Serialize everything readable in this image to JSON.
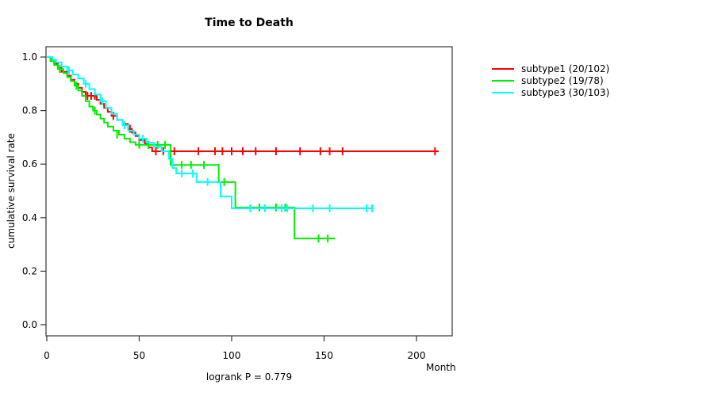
{
  "chart_data": {
    "type": "line",
    "subtype": "kaplan-meier-step",
    "title": "Time to Death",
    "xlabel": "Month",
    "ylabel": "cumulative survival rate",
    "annotation": "logrank P = 0.779",
    "xlim": [
      0,
      219
    ],
    "ylim": [
      0,
      1.04
    ],
    "xticks": [
      0,
      50,
      100,
      150,
      200
    ],
    "yticks": [
      0.0,
      0.2,
      0.4,
      0.6,
      0.8,
      1.0
    ],
    "grid": false,
    "legend_position": "right",
    "series": [
      {
        "name": "subtype1",
        "legend_label": "subtype1 (20/102)",
        "color": "#FF0000",
        "steps": [
          [
            0,
            1.0
          ],
          [
            2,
            0.99
          ],
          [
            4,
            0.975
          ],
          [
            6,
            0.96
          ],
          [
            8,
            0.945
          ],
          [
            11,
            0.93
          ],
          [
            13,
            0.915
          ],
          [
            15,
            0.9
          ],
          [
            17,
            0.885
          ],
          [
            19,
            0.87
          ],
          [
            21,
            0.855
          ],
          [
            27,
            0.84
          ],
          [
            29,
            0.825
          ],
          [
            31,
            0.81
          ],
          [
            33,
            0.795
          ],
          [
            35,
            0.78
          ],
          [
            38,
            0.765
          ],
          [
            41,
            0.75
          ],
          [
            44,
            0.732
          ],
          [
            46,
            0.718
          ],
          [
            48,
            0.705
          ],
          [
            50,
            0.69
          ],
          [
            53,
            0.676
          ],
          [
            55,
            0.662
          ],
          [
            57,
            0.648
          ],
          [
            212,
            0.648
          ]
        ],
        "censors": [
          [
            22,
            0.855
          ],
          [
            24,
            0.855
          ],
          [
            26,
            0.855
          ],
          [
            36,
            0.78
          ],
          [
            45,
            0.732
          ],
          [
            59,
            0.648
          ],
          [
            63,
            0.648
          ],
          [
            69,
            0.648
          ],
          [
            82,
            0.648
          ],
          [
            91,
            0.648
          ],
          [
            95,
            0.648
          ],
          [
            100,
            0.648
          ],
          [
            106,
            0.648
          ],
          [
            113,
            0.648
          ],
          [
            124,
            0.648
          ],
          [
            137,
            0.648
          ],
          [
            148,
            0.648
          ],
          [
            153,
            0.648
          ],
          [
            160,
            0.648
          ],
          [
            210,
            0.648
          ]
        ]
      },
      {
        "name": "subtype2",
        "legend_label": "subtype2 (19/78)",
        "color": "#00EE00",
        "steps": [
          [
            0,
            1.0
          ],
          [
            2,
            0.985
          ],
          [
            4,
            0.97
          ],
          [
            6,
            0.955
          ],
          [
            9,
            0.94
          ],
          [
            11,
            0.925
          ],
          [
            13,
            0.91
          ],
          [
            15,
            0.893
          ],
          [
            17,
            0.875
          ],
          [
            19,
            0.855
          ],
          [
            21,
            0.835
          ],
          [
            23,
            0.815
          ],
          [
            25,
            0.8
          ],
          [
            27,
            0.785
          ],
          [
            29,
            0.77
          ],
          [
            31,
            0.755
          ],
          [
            33,
            0.74
          ],
          [
            36,
            0.725
          ],
          [
            39,
            0.71
          ],
          [
            42,
            0.695
          ],
          [
            45,
            0.682
          ],
          [
            48,
            0.672
          ],
          [
            67,
            0.597
          ],
          [
            93,
            0.533
          ],
          [
            102,
            0.438
          ],
          [
            134,
            0.322
          ],
          [
            156,
            0.322
          ]
        ],
        "censors": [
          [
            7,
            0.955
          ],
          [
            16,
            0.893
          ],
          [
            26,
            0.8
          ],
          [
            38,
            0.71
          ],
          [
            50,
            0.672
          ],
          [
            55,
            0.672
          ],
          [
            60,
            0.672
          ],
          [
            64,
            0.672
          ],
          [
            73,
            0.597
          ],
          [
            78,
            0.597
          ],
          [
            85,
            0.597
          ],
          [
            96,
            0.533
          ],
          [
            115,
            0.438
          ],
          [
            124,
            0.438
          ],
          [
            129,
            0.438
          ],
          [
            147,
            0.322
          ],
          [
            152,
            0.322
          ]
        ]
      },
      {
        "name": "subtype3",
        "legend_label": "subtype3 (30/103)",
        "color": "#00FFFF",
        "steps": [
          [
            0,
            1.0
          ],
          [
            3,
            0.99
          ],
          [
            5,
            0.98
          ],
          [
            8,
            0.965
          ],
          [
            11,
            0.95
          ],
          [
            14,
            0.935
          ],
          [
            17,
            0.92
          ],
          [
            20,
            0.9
          ],
          [
            23,
            0.88
          ],
          [
            26,
            0.86
          ],
          [
            29,
            0.835
          ],
          [
            32,
            0.81
          ],
          [
            35,
            0.788
          ],
          [
            38,
            0.765
          ],
          [
            41,
            0.745
          ],
          [
            44,
            0.725
          ],
          [
            47,
            0.71
          ],
          [
            50,
            0.695
          ],
          [
            54,
            0.68
          ],
          [
            58,
            0.665
          ],
          [
            62,
            0.648
          ],
          [
            66,
            0.62
          ],
          [
            68,
            0.585
          ],
          [
            70,
            0.565
          ],
          [
            81,
            0.533
          ],
          [
            94,
            0.479
          ],
          [
            100,
            0.435
          ],
          [
            177,
            0.435
          ]
        ],
        "censors": [
          [
            12,
            0.95
          ],
          [
            21,
            0.9
          ],
          [
            30,
            0.835
          ],
          [
            42,
            0.745
          ],
          [
            52,
            0.695
          ],
          [
            73,
            0.565
          ],
          [
            79,
            0.565
          ],
          [
            87,
            0.533
          ],
          [
            110,
            0.435
          ],
          [
            118,
            0.435
          ],
          [
            127,
            0.435
          ],
          [
            130,
            0.435
          ],
          [
            144,
            0.435
          ],
          [
            153,
            0.435
          ],
          [
            173,
            0.435
          ],
          [
            176,
            0.435
          ]
        ]
      }
    ],
    "box_color": "#444444",
    "tick_color": "#333333"
  }
}
